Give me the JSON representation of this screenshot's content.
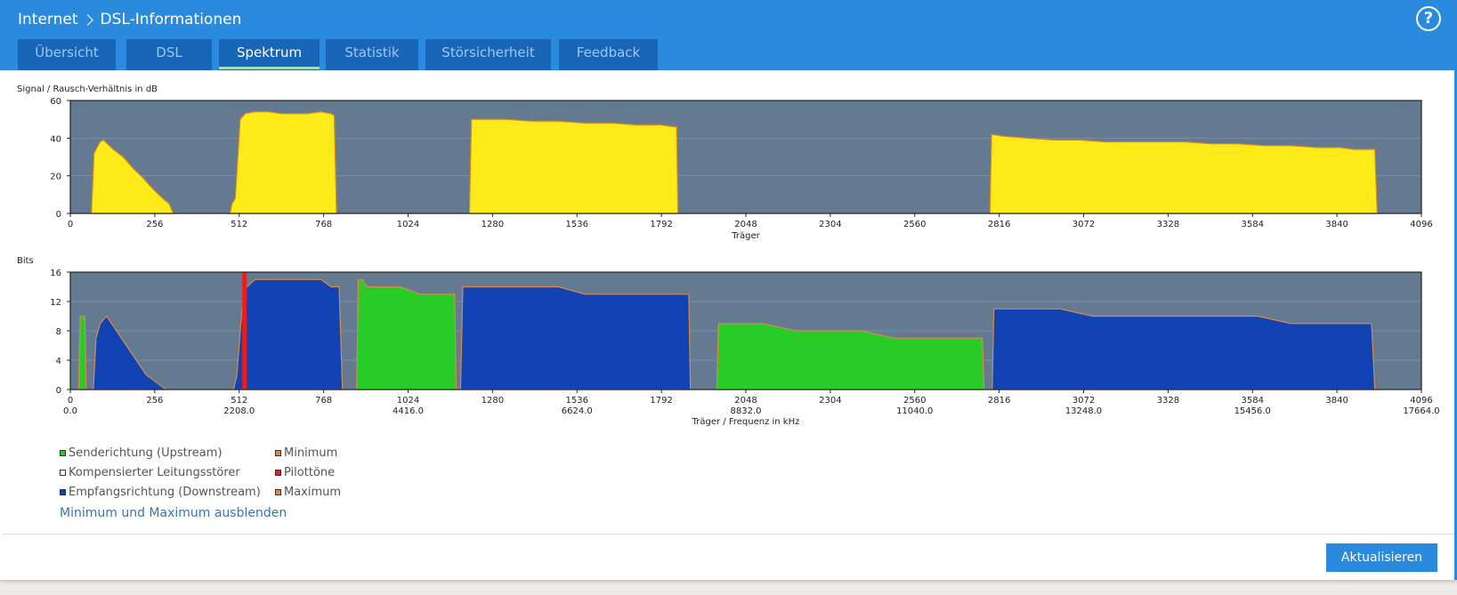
{
  "header": {
    "crumb_root": "Internet",
    "crumb_page": "DSL-Informationen",
    "help_label": "?"
  },
  "tabs": [
    {
      "label": "Übersicht"
    },
    {
      "label": "DSL"
    },
    {
      "label": "Spektrum",
      "active": true
    },
    {
      "label": "Statistik"
    },
    {
      "label": "Störsicherheit"
    },
    {
      "label": "Feedback"
    }
  ],
  "colors": {
    "header_blue": "#2a8add",
    "tab_blue": "#1866b8",
    "active_underline": "#b4e36a",
    "plot_bg": "#647a91",
    "snr_fill": "#ffeb1a",
    "snr_line": "#d98a1c",
    "upstream": "#27cc27",
    "downstream": "#1243b5",
    "pilot": "#ee1c1c",
    "max_line": "#d98a4a"
  },
  "chart_data": [
    {
      "type": "area",
      "ylabel": "Signal / Rausch-Verhältnis in dB",
      "xlabel": "Träger",
      "xlim": [
        0,
        4096
      ],
      "ylim": [
        0,
        60
      ],
      "yticks": [
        0,
        20,
        40,
        60
      ],
      "xticks": [
        0,
        256,
        512,
        768,
        1024,
        1280,
        1536,
        1792,
        2048,
        2304,
        2560,
        2816,
        3072,
        3328,
        3584,
        3840,
        4096
      ],
      "segments": [
        {
          "points": [
            [
              64,
              0
            ],
            [
              72,
              32
            ],
            [
              90,
              38
            ],
            [
              100,
              39
            ],
            [
              130,
              34
            ],
            [
              160,
              30
            ],
            [
              190,
              24
            ],
            [
              220,
              19
            ],
            [
              250,
              13
            ],
            [
              280,
              8
            ],
            [
              300,
              5
            ],
            [
              312,
              0
            ]
          ]
        },
        {
          "points": [
            [
              484,
              0
            ],
            [
              490,
              5
            ],
            [
              500,
              8
            ],
            [
              508,
              30
            ],
            [
              515,
              50
            ],
            [
              530,
              53
            ],
            [
              560,
              54
            ],
            [
              600,
              54
            ],
            [
              640,
              53
            ],
            [
              680,
              53
            ],
            [
              720,
              53
            ],
            [
              760,
              54
            ],
            [
              790,
              53
            ],
            [
              800,
              52
            ],
            [
              807,
              0
            ]
          ]
        },
        {
          "points": [
            [
              1210,
              0
            ],
            [
              1216,
              50
            ],
            [
              1260,
              50
            ],
            [
              1320,
              50
            ],
            [
              1400,
              49
            ],
            [
              1480,
              49
            ],
            [
              1560,
              48
            ],
            [
              1640,
              48
            ],
            [
              1720,
              47
            ],
            [
              1790,
              47
            ],
            [
              1832,
              46
            ],
            [
              1838,
              46
            ],
            [
              1842,
              0
            ]
          ]
        },
        {
          "points": [
            [
              2788,
              0
            ],
            [
              2793,
              42
            ],
            [
              2830,
              41
            ],
            [
              2900,
              40
            ],
            [
              2980,
              39
            ],
            [
              3060,
              39
            ],
            [
              3140,
              38
            ],
            [
              3220,
              38
            ],
            [
              3300,
              38
            ],
            [
              3380,
              38
            ],
            [
              3460,
              37
            ],
            [
              3540,
              37
            ],
            [
              3620,
              36
            ],
            [
              3700,
              36
            ],
            [
              3780,
              35
            ],
            [
              3850,
              35
            ],
            [
              3890,
              34
            ],
            [
              3955,
              34
            ],
            [
              3962,
              0
            ]
          ]
        }
      ]
    },
    {
      "type": "area",
      "ylabel": "Bits",
      "xlabel": "Träger / Frequenz in kHz",
      "xlim": [
        0,
        4096
      ],
      "ylim": [
        0,
        16
      ],
      "yticks": [
        0,
        4,
        8,
        12,
        16
      ],
      "xticks": [
        0,
        256,
        512,
        768,
        1024,
        1280,
        1536,
        1792,
        2048,
        2304,
        2560,
        2816,
        3072,
        3328,
        3584,
        3840,
        4096
      ],
      "freq_ticks": [
        [
          0,
          "0.0"
        ],
        [
          512,
          "2208.0"
        ],
        [
          1024,
          "4416.0"
        ],
        [
          1536,
          "6624.0"
        ],
        [
          2048,
          "8832.0"
        ],
        [
          2560,
          "11040.0"
        ],
        [
          3072,
          "13248.0"
        ],
        [
          3584,
          "15456.0"
        ],
        [
          4096,
          "17664.0"
        ]
      ],
      "series": [
        {
          "name": "Senderichtung (Upstream)",
          "segments": [
            {
              "points": [
                [
                  25,
                  0
                ],
                [
                  30,
                  10
                ],
                [
                  36,
                  10
                ],
                [
                  44,
                  10
                ],
                [
                  48,
                  0
                ]
              ]
            },
            {
              "points": [
                [
                  868,
                  0
                ],
                [
                  873,
                  15
                ],
                [
                  885,
                  15
                ],
                [
                  900,
                  14
                ],
                [
                  950,
                  14
                ],
                [
                  1000,
                  14
                ],
                [
                  1060,
                  13
                ],
                [
                  1130,
                  13
                ],
                [
                  1165,
                  13
                ],
                [
                  1170,
                  0
                ]
              ]
            },
            {
              "points": [
                [
                  1960,
                  0
                ],
                [
                  1965,
                  9
                ],
                [
                  2000,
                  9
                ],
                [
                  2100,
                  9
                ],
                [
                  2200,
                  8
                ],
                [
                  2400,
                  8
                ],
                [
                  2500,
                  7
                ],
                [
                  2600,
                  7
                ],
                [
                  2700,
                  7
                ],
                [
                  2765,
                  7
                ],
                [
                  2770,
                  0
                ]
              ]
            }
          ]
        },
        {
          "name": "Empfangsrichtung (Downstream)",
          "segments": [
            {
              "points": [
                [
                  70,
                  0
                ],
                [
                  78,
                  7
                ],
                [
                  90,
                  9
                ],
                [
                  110,
                  10
                ],
                [
                  140,
                  8
                ],
                [
                  170,
                  6
                ],
                [
                  200,
                  4
                ],
                [
                  230,
                  2
                ],
                [
                  260,
                  1
                ],
                [
                  290,
                  0
                ]
              ]
            },
            {
              "points": [
                [
                  495,
                  0
                ],
                [
                  505,
                  2
                ],
                [
                  515,
                  8
                ],
                [
                  525,
                  13
                ],
                [
                  535,
                  14
                ],
                [
                  560,
                  15
                ],
                [
                  620,
                  15
                ],
                [
                  700,
                  15
                ],
                [
                  760,
                  15
                ],
                [
                  790,
                  14
                ],
                [
                  815,
                  14
                ],
                [
                  825,
                  0
                ]
              ]
            },
            {
              "points": [
                [
                  1183,
                  0
                ],
                [
                  1190,
                  14
                ],
                [
                  1260,
                  14
                ],
                [
                  1320,
                  14
                ],
                [
                  1400,
                  14
                ],
                [
                  1480,
                  14
                ],
                [
                  1560,
                  13
                ],
                [
                  1640,
                  13
                ],
                [
                  1720,
                  13
                ],
                [
                  1800,
                  13
                ],
                [
                  1875,
                  13
                ],
                [
                  1880,
                  0
                ]
              ]
            },
            {
              "points": [
                [
                  2795,
                  0
                ],
                [
                  2800,
                  11
                ],
                [
                  2900,
                  11
                ],
                [
                  3000,
                  11
                ],
                [
                  3100,
                  10
                ],
                [
                  3200,
                  10
                ],
                [
                  3300,
                  10
                ],
                [
                  3400,
                  10
                ],
                [
                  3500,
                  10
                ],
                [
                  3600,
                  10
                ],
                [
                  3700,
                  9
                ],
                [
                  3800,
                  9
                ],
                [
                  3945,
                  9
                ],
                [
                  3955,
                  0
                ]
              ]
            }
          ]
        },
        {
          "name": "Pilottöne",
          "points": [
            [
              528,
              16
            ]
          ]
        }
      ]
    }
  ],
  "legend": {
    "left": [
      {
        "label": "Senderichtung (Upstream)",
        "color": "#27cc27"
      },
      {
        "label": "Kompensierter Leitungsstörer",
        "color": "#ffffff"
      },
      {
        "label": "Empfangsrichtung (Downstream)",
        "color": "#1243b5"
      }
    ],
    "right": [
      {
        "label": "Minimum",
        "color": "#d98a4a"
      },
      {
        "label": "Pilottöne",
        "color": "#ee1c1c"
      },
      {
        "label": "Maximum",
        "color": "#d98a4a"
      }
    ]
  },
  "links": {
    "toggle_minmax": "Minimum und Maximum ausblenden"
  },
  "footer": {
    "update_button": "Aktualisieren"
  }
}
